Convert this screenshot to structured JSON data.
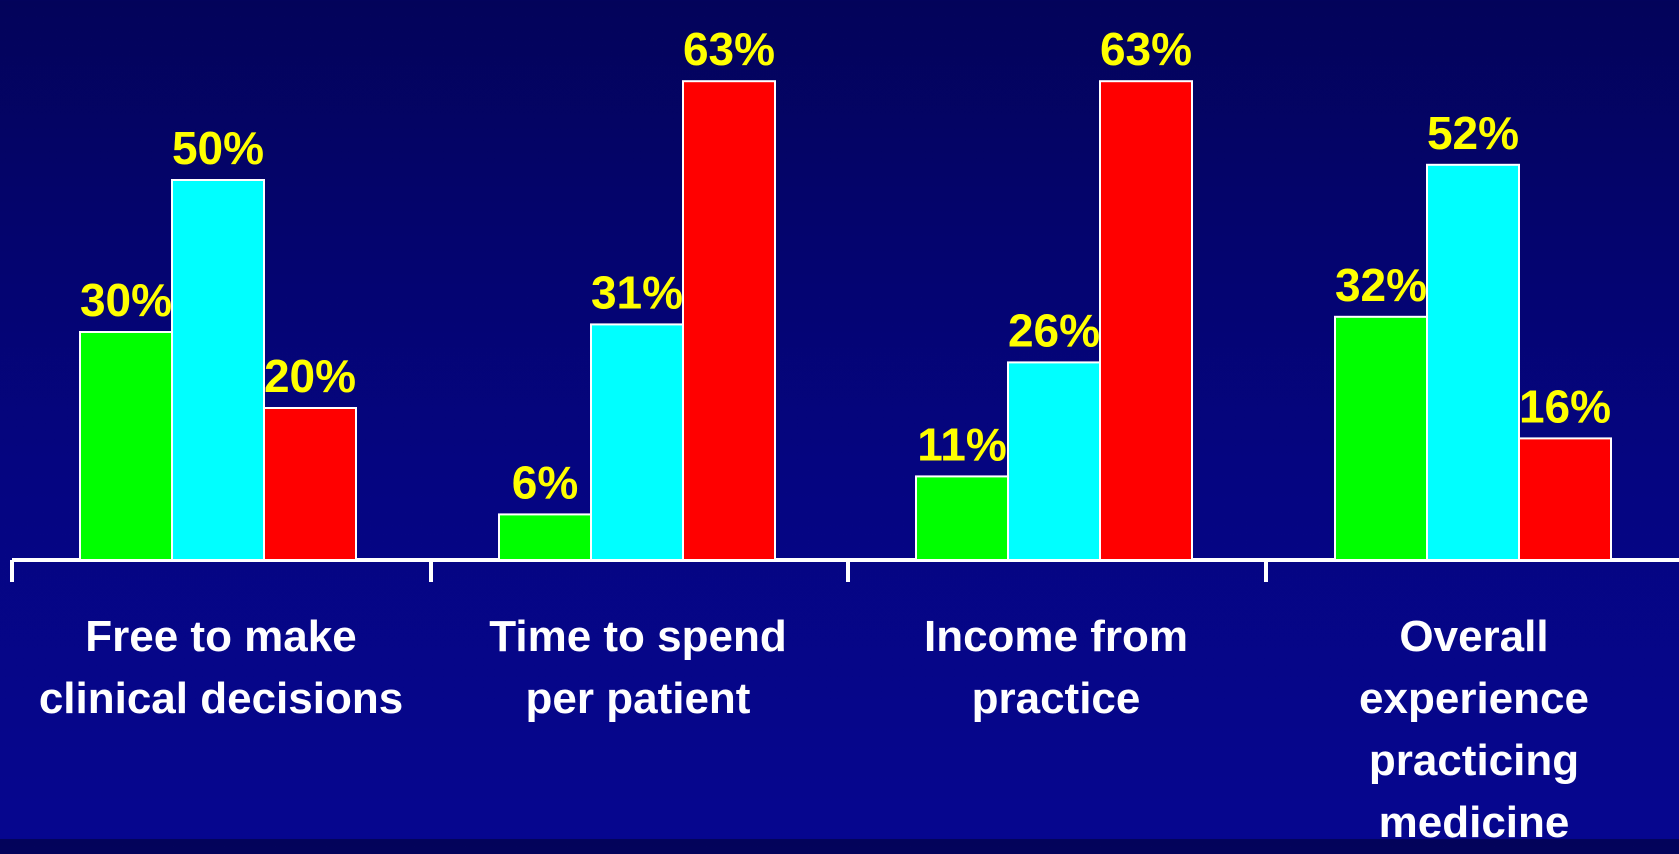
{
  "chart_data": {
    "type": "bar",
    "categories": [
      "Free to make\nclinical decisions",
      "Time to spend\nper patient",
      "Income from\npractice",
      "Overall\nexperience\npracticing\nmedicine"
    ],
    "series": [
      {
        "color": "#00ff00",
        "values": [
          30,
          6,
          11,
          32
        ],
        "labels": [
          "30%",
          "6%",
          "11%",
          "32%"
        ]
      },
      {
        "color": "#00ffff",
        "values": [
          50,
          31,
          26,
          52
        ],
        "labels": [
          "50%",
          "31%",
          "26%",
          "52%"
        ]
      },
      {
        "color": "#ff0000",
        "values": [
          20,
          63,
          63,
          16
        ],
        "labels": [
          "20%",
          "63%",
          "63%",
          "16%"
        ]
      }
    ],
    "value_label_color": "#ffff00",
    "axis_color": "#ffffff",
    "ylim": [
      0,
      63
    ],
    "legend": "none",
    "grid": false
  }
}
